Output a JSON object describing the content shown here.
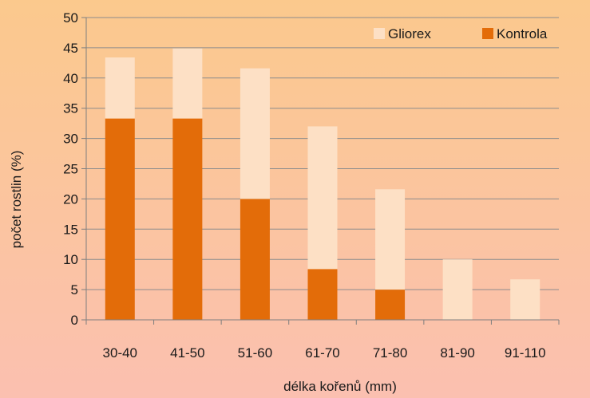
{
  "chart_data": {
    "type": "bar",
    "stacked": true,
    "categories": [
      "30-40",
      "41-50",
      "51-60",
      "61-70",
      "71-80",
      "81-90",
      "91-110"
    ],
    "series": [
      {
        "name": "Kontrola",
        "color": "#e36c09",
        "values": [
          33.3,
          33.3,
          20,
          8.4,
          5,
          0,
          0
        ]
      },
      {
        "name": "Gliorex",
        "color": "#fde0c5",
        "values": [
          10.1,
          11.6,
          21.6,
          23.6,
          16.6,
          10,
          6.7
        ]
      }
    ],
    "legend_order": [
      "Gliorex",
      "Kontrola"
    ],
    "legend_position": "top-right",
    "xlabel": "délka kořenů (mm)",
    "ylabel": "počet rostlin (%)",
    "ylim": [
      0,
      50
    ],
    "yticks": [
      0,
      5,
      10,
      15,
      20,
      25,
      30,
      35,
      40,
      45,
      50
    ],
    "grid": "horizontal",
    "background_gradient": [
      "#fbc98d",
      "#fbc0b0"
    ]
  }
}
